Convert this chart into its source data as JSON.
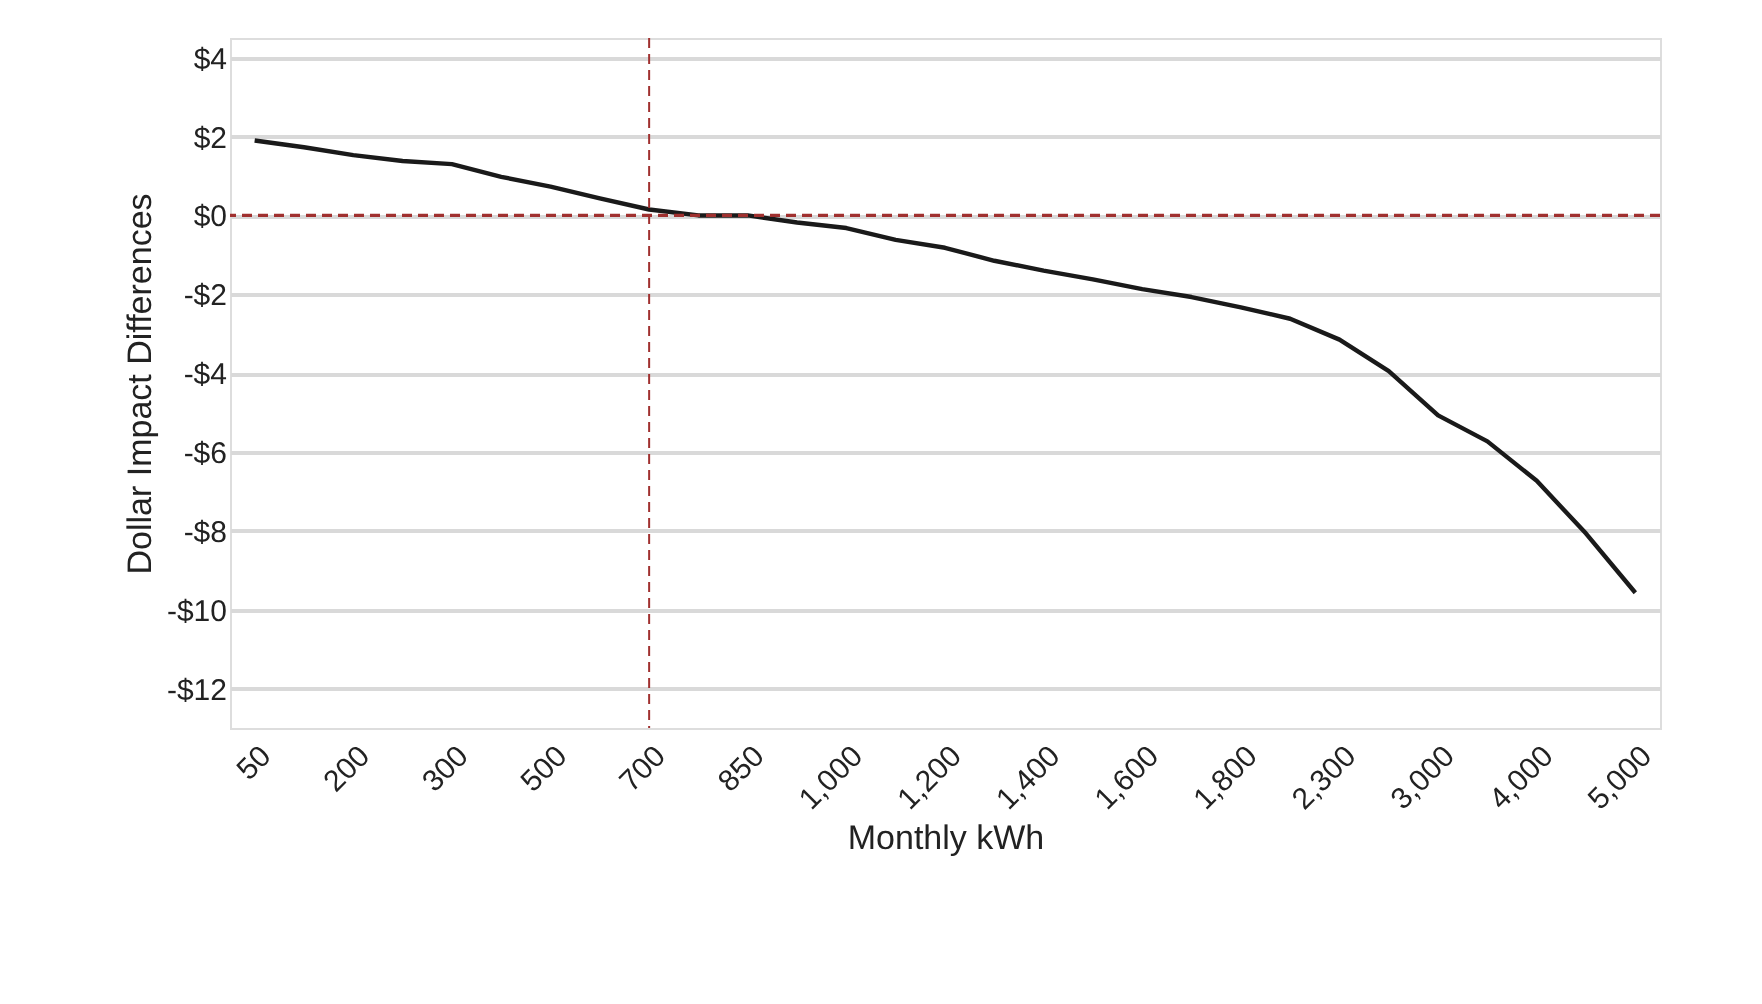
{
  "chart_data": {
    "type": "line",
    "xlabel": "Monthly kWh",
    "ylabel": "Dollar Impact Differences",
    "categories": [
      "50",
      null,
      "200",
      null,
      "300",
      null,
      "500",
      null,
      "700",
      null,
      "850",
      null,
      "1,000",
      null,
      "1,200",
      null,
      "1,400",
      null,
      "1,600",
      null,
      "1,800",
      null,
      "2,300",
      null,
      "3,000",
      null,
      "4,000",
      null,
      "5,000"
    ],
    "series": [
      {
        "color": "#1a1a1a",
        "values": [
          1.9,
          1.73,
          1.53,
          1.38,
          1.3,
          0.98,
          0.73,
          0.43,
          0.15,
          0.0,
          0.0,
          -0.18,
          -0.32,
          -0.62,
          -0.82,
          -1.15,
          -1.4,
          -1.62,
          -1.87,
          -2.07,
          -2.33,
          -2.62,
          -3.15,
          -3.95,
          -5.07,
          -5.73,
          -6.73,
          -8.07,
          -9.57
        ]
      }
    ],
    "ylim": [
      -13,
      4.5
    ],
    "yticks": [
      {
        "value": 4,
        "label": "$4"
      },
      {
        "value": 2,
        "label": "$2"
      },
      {
        "value": 0,
        "label": "$0"
      },
      {
        "value": -2,
        "label": "-$2"
      },
      {
        "value": -4,
        "label": "-$4"
      },
      {
        "value": -6,
        "label": "-$6"
      },
      {
        "value": -8,
        "label": "-$8"
      },
      {
        "value": -10,
        "label": "-$10"
      },
      {
        "value": -12,
        "label": "-$12"
      }
    ],
    "ref_lines": [
      {
        "axis": "y",
        "value": 0,
        "color": "#a0302f",
        "line_style": "dashed"
      },
      {
        "axis": "x",
        "value": "700",
        "color": "#a0302f",
        "line_style": "dashed"
      }
    ],
    "grid": "y",
    "marker": "none",
    "line_style": "solid"
  }
}
